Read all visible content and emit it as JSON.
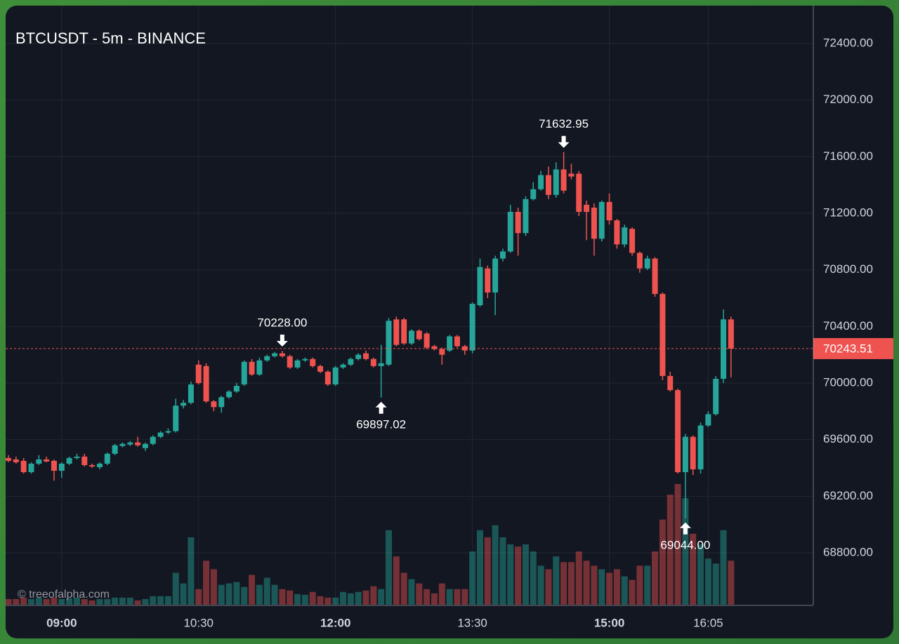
{
  "chart_data": {
    "type": "candlestick",
    "title": "BTCUSDT - 5m - BINANCE",
    "watermark": "© treeofalpha.com",
    "x": [
      "08:25",
      "08:30",
      "08:35",
      "08:40",
      "08:45",
      "08:50",
      "08:55",
      "09:00",
      "09:05",
      "09:10",
      "09:15",
      "09:20",
      "09:25",
      "09:30",
      "09:35",
      "09:40",
      "09:45",
      "09:50",
      "09:55",
      "10:00",
      "10:05",
      "10:10",
      "10:15",
      "10:20",
      "10:25",
      "10:30",
      "10:35",
      "10:40",
      "10:45",
      "10:50",
      "10:55",
      "11:00",
      "11:05",
      "11:10",
      "11:15",
      "11:20",
      "11:25",
      "11:30",
      "11:35",
      "11:40",
      "11:45",
      "11:50",
      "11:55",
      "12:00",
      "12:05",
      "12:10",
      "12:15",
      "12:20",
      "12:25",
      "12:30",
      "12:35",
      "12:40",
      "12:45",
      "12:50",
      "12:55",
      "13:00",
      "13:05",
      "13:10",
      "13:15",
      "13:20",
      "13:25",
      "13:30",
      "13:35",
      "13:40",
      "13:45",
      "13:50",
      "13:55",
      "14:00",
      "14:05",
      "14:10",
      "14:15",
      "14:20",
      "14:25",
      "14:30",
      "14:35",
      "14:40",
      "14:45",
      "14:50",
      "14:55",
      "15:00",
      "15:05",
      "15:10",
      "15:15",
      "15:20",
      "15:25",
      "15:30",
      "15:35",
      "15:40",
      "15:45",
      "15:50",
      "15:55",
      "16:00",
      "16:05",
      "16:10",
      "16:15",
      "16:20"
    ],
    "open": [
      69470,
      69460,
      69450,
      69370,
      69430,
      69460,
      69450,
      69380,
      69430,
      69470,
      69480,
      69420,
      69405,
      69430,
      69500,
      69555,
      69565,
      69580,
      69540,
      69570,
      69620,
      69650,
      69660,
      69840,
      69860,
      70130,
      70120,
      69870,
      69830,
      69900,
      69940,
      69990,
      70150,
      70060,
      70160,
      70190,
      70210,
      70190,
      70110,
      70160,
      70170,
      70120,
      70080,
      69990,
      70110,
      70130,
      70170,
      70210,
      70170,
      70120,
      70130,
      70450,
      70450,
      70280,
      70370,
      70350,
      70260,
      70240,
      70230,
      70330,
      70260,
      70230,
      70550,
      70810,
      70640,
      70880,
      70930,
      71210,
      71060,
      71300,
      71370,
      71470,
      71330,
      71510,
      71480,
      71480,
      71260,
      71240,
      71020,
      71280,
      71150,
      70980,
      71090,
      70920,
      70810,
      70880,
      70630,
      70050,
      69950,
      69370,
      69620,
      69390,
      69700,
      69780,
      70030,
      70450
    ],
    "high": [
      69490,
      69480,
      69470,
      69440,
      69490,
      69480,
      69460,
      69440,
      69480,
      69500,
      69500,
      69430,
      69440,
      69510,
      69570,
      69580,
      69590,
      69620,
      69580,
      69630,
      69660,
      69680,
      69890,
      69880,
      70010,
      70160,
      70140,
      69880,
      69910,
      69950,
      70000,
      70160,
      70170,
      70180,
      70200,
      70220,
      70228,
      70200,
      70170,
      70180,
      70180,
      70130,
      70090,
      70120,
      70140,
      70180,
      70210,
      70230,
      70180,
      70270,
      70460,
      70470,
      70460,
      70380,
      70380,
      70360,
      70270,
      70250,
      70340,
      70340,
      70270,
      70570,
      70880,
      70830,
      70900,
      70950,
      71260,
      71240,
      71320,
      71420,
      71500,
      71530,
      71560,
      71632.95,
      71550,
      71500,
      71290,
      71270,
      71290,
      71340,
      71160,
      71120,
      71100,
      70930,
      70900,
      70890,
      70640,
      70080,
      69960,
      69640,
      69630,
      69720,
      69800,
      70050,
      70520,
      70470
    ],
    "low": [
      69440,
      69430,
      69360,
      69360,
      69420,
      69440,
      69310,
      69330,
      69420,
      69460,
      69410,
      69400,
      69390,
      69420,
      69490,
      69545,
      69555,
      69550,
      69520,
      69560,
      69610,
      69640,
      69650,
      69820,
      69850,
      69990,
      69860,
      69800,
      69790,
      69890,
      69930,
      69980,
      70050,
      70050,
      70150,
      70180,
      70180,
      70100,
      70100,
      70150,
      70110,
      70070,
      69980,
      69980,
      70100,
      70120,
      70160,
      70160,
      70110,
      69897.02,
      70120,
      70260,
      70270,
      70270,
      70300,
      70240,
      70230,
      70130,
      70220,
      70250,
      70200,
      70210,
      70540,
      70600,
      70480,
      70860,
      70920,
      70900,
      71040,
      71290,
      71360,
      71300,
      71310,
      71340,
      71440,
      71180,
      71010,
      70900,
      71000,
      71120,
      70950,
      70960,
      70900,
      70780,
      70800,
      70610,
      70020,
      69940,
      69360,
      69044,
      69350,
      69360,
      69690,
      69770,
      70000,
      70040
    ],
    "close": [
      69450,
      69440,
      69370,
      69430,
      69460,
      69445,
      69380,
      69430,
      69470,
      69480,
      69420,
      69410,
      69430,
      69500,
      69560,
      69570,
      69580,
      69560,
      69570,
      69620,
      69650,
      69660,
      69840,
      69860,
      69990,
      70000,
      69870,
      69830,
      69900,
      69940,
      69980,
      70150,
      70060,
      70160,
      70190,
      70210,
      70190,
      70110,
      70160,
      70170,
      70120,
      70080,
      69990,
      70110,
      70130,
      70170,
      70200,
      70170,
      70120,
      70140,
      70440,
      70270,
      70280,
      70370,
      70310,
      70250,
      70240,
      70200,
      70330,
      70260,
      70230,
      70560,
      70820,
      70640,
      70880,
      70930,
      71210,
      71060,
      71300,
      71370,
      71470,
      71330,
      71510,
      71360,
      71460,
      71210,
      71210,
      71020,
      71280,
      71150,
      70980,
      71100,
      70920,
      70810,
      70880,
      70630,
      70050,
      69950,
      69370,
      69620,
      69390,
      69700,
      69780,
      70030,
      70450,
      70243.51
    ],
    "volume": [
      8,
      8,
      10,
      8,
      10,
      8,
      10,
      8,
      9,
      10,
      8,
      6,
      8,
      8,
      10,
      10,
      10,
      6,
      8,
      12,
      12,
      12,
      45,
      30,
      95,
      22,
      62,
      50,
      28,
      30,
      32,
      25,
      42,
      28,
      38,
      28,
      22,
      20,
      15,
      14,
      18,
      12,
      10,
      10,
      18,
      16,
      18,
      20,
      26,
      22,
      105,
      68,
      45,
      36,
      30,
      22,
      16,
      30,
      22,
      22,
      22,
      75,
      105,
      95,
      112,
      95,
      85,
      82,
      85,
      75,
      55,
      50,
      68,
      60,
      60,
      75,
      62,
      55,
      50,
      45,
      50,
      40,
      35,
      55,
      55,
      75,
      120,
      155,
      170,
      150,
      100,
      85,
      65,
      58,
      105,
      62
    ],
    "up_color": "#26a69a",
    "down_color": "#ef5350",
    "ylim": [
      68433,
      72668
    ],
    "yticks": [
      {
        "value": 68800,
        "label": "68800.00"
      },
      {
        "value": 69200,
        "label": "69200.00"
      },
      {
        "value": 69600,
        "label": "69600.00"
      },
      {
        "value": 70000,
        "label": "70000.00"
      },
      {
        "value": 70400,
        "label": "70400.00"
      },
      {
        "value": 70800,
        "label": "70800.00"
      },
      {
        "value": 71200,
        "label": "71200.00"
      },
      {
        "value": 71600,
        "label": "71600.00"
      },
      {
        "value": 72000,
        "label": "72000.00"
      },
      {
        "value": 72400,
        "label": "72400.00"
      }
    ],
    "xticks": [
      "09:00",
      "10:30",
      "12:00",
      "13:30",
      "15:00",
      "16:05"
    ],
    "xticks_bold": [
      true,
      false,
      true,
      false,
      true,
      false
    ],
    "grid": true,
    "last_price": {
      "value": 70243.51,
      "label": "70243.51"
    },
    "annotations": [
      {
        "x": "11:25",
        "value": 70228,
        "label": "70228.00",
        "position": "above"
      },
      {
        "x": "12:30",
        "value": 69897.02,
        "label": "69897.02",
        "position": "below"
      },
      {
        "x": "14:30",
        "value": 71632.95,
        "label": "71632.95",
        "position": "above"
      },
      {
        "x": "15:50",
        "value": 69044,
        "label": "69044.00",
        "position": "below"
      }
    ]
  }
}
